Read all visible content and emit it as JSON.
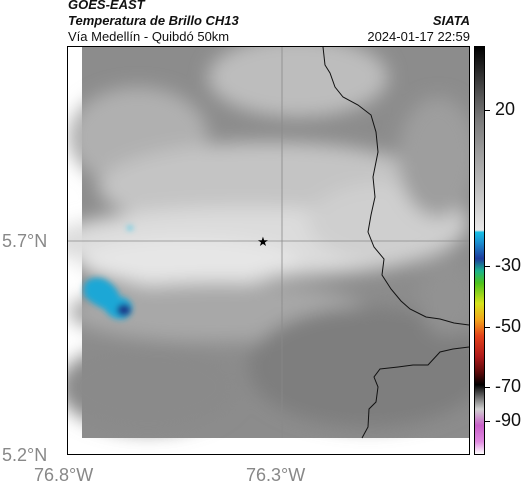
{
  "header": {
    "satellite": "GOES-EAST",
    "product": "Temperatura de Brillo CH13",
    "region": "Vía Medellín - Quibdó 50km",
    "agency": "SIATA",
    "datetime": "2024-01-17 22:59"
  },
  "axes": {
    "y_ticks": [
      "5.7°N",
      "5.2°N"
    ],
    "x_ticks": [
      "76.8°W",
      "76.3°W"
    ]
  },
  "colorbar": {
    "ticks": [
      "20",
      "-30",
      "-50",
      "-70",
      "-90"
    ]
  },
  "map": {
    "marker_icon": "star-icon",
    "cloud_colors": {
      "warm": "#e4e4e4",
      "cold_cyan": "#1aa7d6",
      "cold_blue": "#1b3a8c"
    }
  }
}
